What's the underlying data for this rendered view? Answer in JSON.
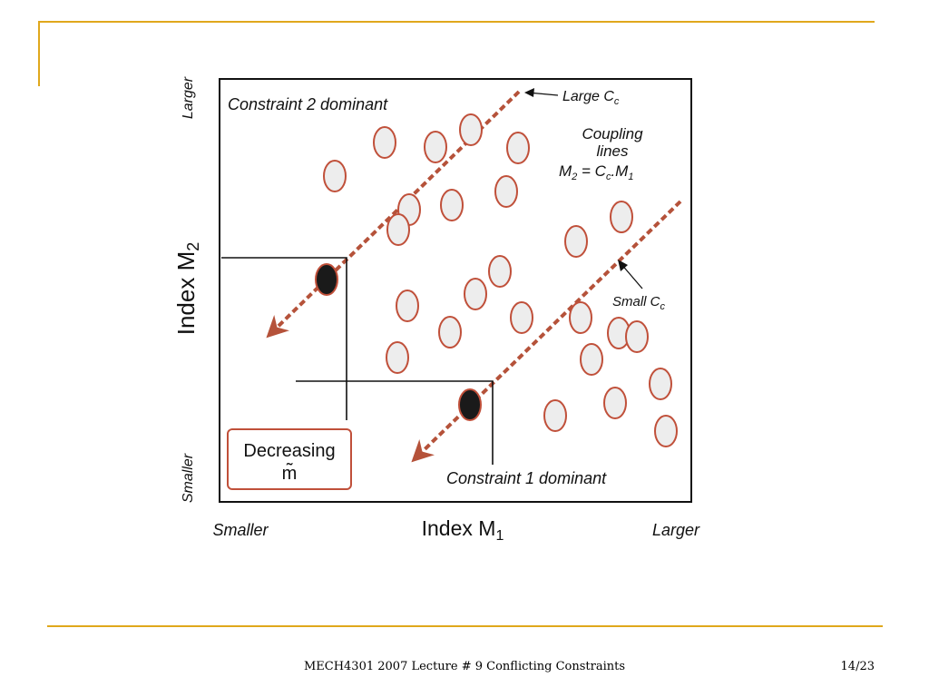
{
  "figure": {
    "labels": {
      "constraint2": "Constraint 2 dominant",
      "constraint1": "Constraint 1 dominant",
      "large_cc": "Large C",
      "large_cc_sub": "c",
      "small_cc": "Small C",
      "small_cc_sub": "c",
      "coupling_line1": "Coupling",
      "coupling_line2": "lines",
      "coupling_eq_m2": "M",
      "coupling_eq_2": "2",
      "coupling_eq_mid": " = C",
      "coupling_eq_c": "c",
      "coupling_eq_m1": ".M",
      "coupling_eq_1": "1",
      "y_axis_main": "Index M",
      "y_axis_sub": "2",
      "x_axis_main": "Index M",
      "x_axis_sub": "1",
      "y_larger": "Larger",
      "y_smaller": "Smaller",
      "x_smaller": "Smaller",
      "x_larger": "Larger",
      "decreasing": "Decreasing",
      "m_tilde": "m̃"
    },
    "colors": {
      "accent": "#e0a81c",
      "arrow": "#b5523a",
      "circle_fill": "#ededed",
      "circle_stroke": "#c0503a",
      "selected_fill": "#1a1a1a"
    }
  },
  "footer": {
    "title": "MECH4301 2007 Lecture # 9 Conflicting Constraints",
    "page": "14/23"
  }
}
